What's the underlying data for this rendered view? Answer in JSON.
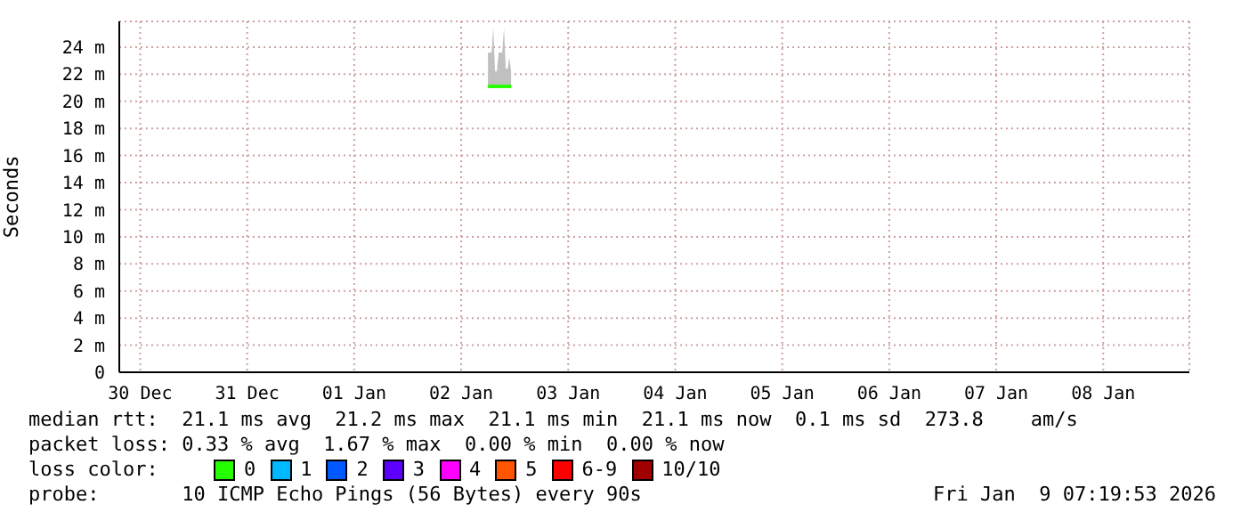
{
  "chart_data": {
    "type": "line",
    "ylabel": "Seconds",
    "x": [
      "2026-01-02T18:00",
      "2026-01-02T18:24",
      "2026-01-02T18:48",
      "2026-01-02T19:12",
      "2026-01-02T19:36",
      "2026-01-02T20:00",
      "2026-01-02T20:24",
      "2026-01-02T20:48",
      "2026-01-02T21:12",
      "2026-01-02T21:36",
      "2026-01-02T22:00",
      "2026-01-02T22:24",
      "2026-01-02T22:48",
      "2026-01-02T23:12"
    ],
    "series": [
      {
        "name": "0",
        "color": "#26ff00",
        "values": [
          21.1,
          21.1,
          21.1,
          21.1,
          21.1,
          21.1,
          21.1,
          21.1,
          21.1,
          21.1,
          21.1,
          21.1,
          21.1,
          21.1
        ],
        "lower": [
          21.0,
          21.0,
          21.0,
          21.0,
          21.0,
          21.0,
          21.0,
          21.0,
          21.0,
          21.0,
          21.0,
          21.0,
          21.0,
          21.0
        ],
        "upper": [
          23.6,
          23.6,
          23.6,
          25.4,
          22.2,
          22.2,
          23.6,
          23.6,
          23.6,
          25.4,
          22.4,
          22.4,
          23.2,
          22.2
        ]
      },
      {
        "name": "1",
        "color": "#00b8ff",
        "values": [
          null,
          null,
          null,
          null,
          null,
          null,
          null,
          null,
          null,
          null,
          null,
          null,
          null,
          null
        ]
      },
      {
        "name": "2",
        "color": "#0059ff",
        "values": [
          null,
          null,
          null,
          null,
          null,
          null,
          null,
          null,
          null,
          null,
          null,
          null,
          null,
          null
        ]
      },
      {
        "name": "3",
        "color": "#5e00ff",
        "values": [
          null,
          null,
          null,
          null,
          null,
          null,
          null,
          null,
          null,
          null,
          null,
          null,
          null,
          null
        ]
      },
      {
        "name": "4",
        "color": "#ff00fe",
        "values": [
          null,
          null,
          null,
          null,
          null,
          null,
          null,
          null,
          null,
          null,
          null,
          null,
          null,
          null
        ]
      },
      {
        "name": "5",
        "color": "#ff5500",
        "values": [
          null,
          null,
          null,
          null,
          null,
          null,
          null,
          null,
          null,
          null,
          null,
          null,
          null,
          null
        ]
      },
      {
        "name": "6-9",
        "color": "#ff0000",
        "values": [
          null,
          null,
          null,
          null,
          null,
          null,
          null,
          null,
          null,
          null,
          null,
          null,
          null,
          null
        ]
      },
      {
        "name": "10/10",
        "color": "#a10000",
        "values": [
          null,
          null,
          null,
          null,
          null,
          null,
          null,
          null,
          null,
          null,
          null,
          null,
          null,
          null
        ]
      }
    ],
    "legend_title": "loss color:",
    "legend": "bottom",
    "grid": true,
    "xlim": [
      "2025-12-30T07:19",
      "2026-01-09T07:19"
    ],
    "xticks": [
      {
        "value": "2025-12-30T12:00",
        "label": "30 Dec"
      },
      {
        "value": "2025-12-31T12:00",
        "label": "31 Dec"
      },
      {
        "value": "2026-01-01T12:00",
        "label": "01 Jan"
      },
      {
        "value": "2026-01-02T12:00",
        "label": "02 Jan"
      },
      {
        "value": "2026-01-03T12:00",
        "label": "03 Jan"
      },
      {
        "value": "2026-01-04T12:00",
        "label": "04 Jan"
      },
      {
        "value": "2026-01-05T12:00",
        "label": "05 Jan"
      },
      {
        "value": "2026-01-06T12:00",
        "label": "06 Jan"
      },
      {
        "value": "2026-01-07T12:00",
        "label": "07 Jan"
      },
      {
        "value": "2026-01-08T12:00",
        "label": "08 Jan"
      }
    ],
    "ylim": [
      0,
      25.9
    ],
    "yticks": [
      0,
      {
        "value": 2,
        "label": "2 m"
      },
      {
        "value": 4,
        "label": "4 m"
      },
      {
        "value": 6,
        "label": "6 m"
      },
      {
        "value": 8,
        "label": "8 m"
      },
      {
        "value": 10,
        "label": "10 m"
      },
      {
        "value": 12,
        "label": "12 m"
      },
      {
        "value": 14,
        "label": "14 m"
      },
      {
        "value": 16,
        "label": "16 m"
      },
      {
        "value": 18,
        "label": "18 m"
      },
      {
        "value": 20,
        "label": "20 m"
      },
      {
        "value": 22,
        "label": "22 m"
      },
      {
        "value": 24,
        "label": "24 m"
      }
    ],
    "annotations": [
      "median rtt:  21.1 ms avg  21.2 ms max  21.1 ms min  21.1 ms now  0.1 ms sd  273.8    am/s",
      "packet loss: 0.33 % avg  1.67 % max  0.00 % min  0.00 % now",
      "probe:       10 ICMP Echo Pings (56 Bytes) every 90s",
      "Fri Jan  9 07:19:53 2026"
    ]
  }
}
